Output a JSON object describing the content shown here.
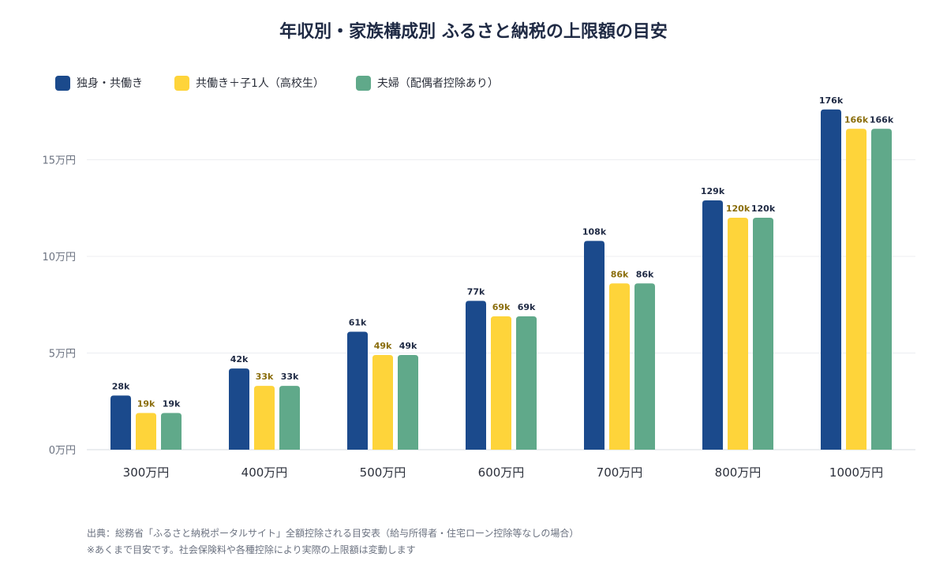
{
  "title": "年収別・家族構成別 ふるさと納税の上限額の目安",
  "notes": {
    "source": "出典：総務省「ふるさと納税ポータルサイト」全額控除される目安表（給与所得者・住宅ローン控除等なしの場合）",
    "disclaimer": "※あくまで目安です。社会保険料や各種控除により実際の上限額は変動します"
  },
  "colors": {
    "series_0": "#1b4a8c",
    "series_1": "#fed43a",
    "series_2": "#60a98a",
    "label_series_1": "#8a6d0b"
  },
  "chart_data": {
    "type": "bar",
    "categories": [
      "300万円",
      "400万円",
      "500万円",
      "600万円",
      "700万円",
      "800万円",
      "1000万円"
    ],
    "series": [
      {
        "name": "独身・共働き",
        "values": [
          28,
          42,
          61,
          77,
          108,
          129,
          176
        ],
        "labels": [
          "28k",
          "42k",
          "61k",
          "77k",
          "108k",
          "129k",
          "176k"
        ]
      },
      {
        "name": "共働き＋子1人（高校生）",
        "values": [
          19,
          33,
          49,
          69,
          86,
          120,
          166
        ],
        "labels": [
          "19k",
          "33k",
          "49k",
          "69k",
          "86k",
          "120k",
          "166k"
        ]
      },
      {
        "name": "夫婦（配偶者控除あり）",
        "values": [
          19,
          33,
          49,
          69,
          86,
          120,
          166
        ],
        "labels": [
          "19k",
          "33k",
          "49k",
          "69k",
          "86k",
          "120k",
          "166k"
        ]
      }
    ],
    "value_unit": "千円",
    "yticks": [
      0,
      50,
      100,
      150
    ],
    "ytick_labels": [
      "0万円",
      "5万円",
      "10万円",
      "15万円"
    ],
    "ylim": [
      0,
      180
    ],
    "grid": true,
    "legend_position": "top-left"
  }
}
